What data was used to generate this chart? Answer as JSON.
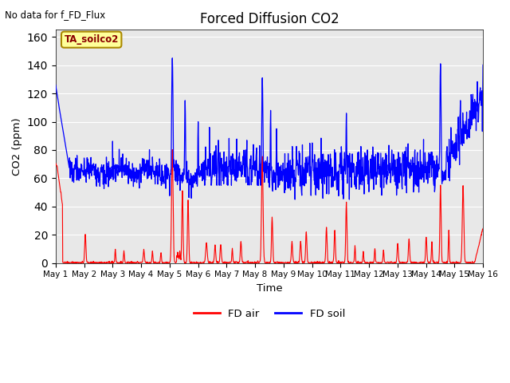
{
  "title": "Forced Diffusion CO2",
  "no_data_text": "No data for f_FD_Flux",
  "annotation_text": "TA_soilco2",
  "xlabel": "Time",
  "ylabel": "CO2 (ppm)",
  "ylim": [
    0,
    165
  ],
  "yticks": [
    0,
    20,
    40,
    60,
    80,
    100,
    120,
    140,
    160
  ],
  "background_color": "#e8e8e8",
  "line_red_color": "#ff0000",
  "line_blue_color": "#0000ff",
  "legend_labels": [
    "FD air",
    "FD soil"
  ],
  "annotation_bg": "#ffff99",
  "annotation_border": "#aa8800",
  "x_tick_labels": [
    "May 1",
    "May 2",
    "May 3",
    "May 4",
    "May 5",
    "May 6",
    "May 7",
    "May 8",
    "May 9",
    "May 10",
    "May 11",
    "May 12",
    "May 13",
    "May 14",
    "May 15",
    "May 16"
  ],
  "num_points_per_day": 96,
  "num_days": 15
}
